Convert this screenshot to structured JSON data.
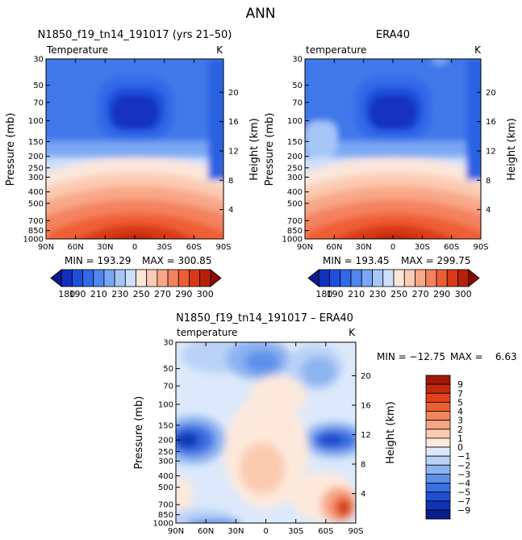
{
  "figure_title": "ANN",
  "chart_data": [
    {
      "type": "heatmap",
      "title": "N1850_f19_tn14_191017 (yrs 21–50)",
      "left_string": "Temperature",
      "units": "K",
      "ylabel": "Pressure (mb)",
      "y2label": "Height (km)",
      "x_ticks": [
        "90N",
        "60N",
        "30N",
        "0",
        "30S",
        "60S",
        "90S"
      ],
      "y_ticks": [
        "30",
        "50",
        "70",
        "100",
        "150",
        "200",
        "250",
        "300",
        "400",
        "500",
        "700",
        "850",
        "1000"
      ],
      "y2_ticks": [
        "20",
        "16",
        "12",
        "8",
        "4"
      ],
      "min_label": "MIN = 193.29",
      "max_label": "MAX = 300.85",
      "colorbar_labels": [
        "180",
        "190",
        "210",
        "230",
        "250",
        "270",
        "290",
        "300"
      ],
      "colorbar_colors": [
        "#0b1a8a",
        "#1230c0",
        "#1e4fdc",
        "#3169e8",
        "#4f86ef",
        "#79a7f3",
        "#a6c6f8",
        "#cfe0fb",
        "#fbe6da",
        "#fccbb2",
        "#f8a888",
        "#f4825e",
        "#ee5e35",
        "#d93a15",
        "#b8200a",
        "#8a0b04"
      ]
    },
    {
      "type": "heatmap",
      "title": "ERA40",
      "left_string": "temperature",
      "units": "K",
      "ylabel": "Pressure (mb)",
      "y2label": "Height (km)",
      "x_ticks": [
        "90N",
        "60N",
        "30N",
        "0",
        "30S",
        "60S",
        "90S"
      ],
      "y_ticks": [
        "30",
        "50",
        "70",
        "100",
        "150",
        "200",
        "250",
        "300",
        "400",
        "500",
        "700",
        "850",
        "1000"
      ],
      "y2_ticks": [
        "20",
        "16",
        "12",
        "8",
        "4"
      ],
      "min_label": "MIN = 193.45",
      "max_label": "MAX = 299.75",
      "colorbar_labels": [
        "180",
        "190",
        "210",
        "230",
        "250",
        "270",
        "290",
        "300"
      ]
    },
    {
      "type": "heatmap",
      "title": "N1850_f19_tn14_191017 – ERA40",
      "left_string": "temperature",
      "units": "K",
      "ylabel": "Pressure (mb)",
      "y2label": "Height (km)",
      "x_ticks": [
        "90N",
        "60N",
        "30N",
        "0",
        "30S",
        "60S",
        "90S"
      ],
      "y_ticks": [
        "30",
        "50",
        "70",
        "100",
        "150",
        "200",
        "250",
        "300",
        "400",
        "500",
        "700",
        "850",
        "1000"
      ],
      "y2_ticks": [
        "20",
        "16",
        "12",
        "8",
        "4"
      ],
      "min_label": "MIN = −12.75",
      "max_label": "MAX =    6.63",
      "colorbar_labels": [
        "9",
        "7",
        "5",
        "4",
        "3",
        "2",
        "1",
        "0",
        "−1",
        "−2",
        "−3",
        "−4",
        "−5",
        "−7",
        "−9"
      ],
      "colorbar_colors": [
        "#a01808",
        "#c42a0a",
        "#de4218",
        "#ec6030",
        "#f3855a",
        "#f7a585",
        "#fbcbb0",
        "#fde9dc",
        "#dce9fb",
        "#b9d2f6",
        "#8cb3f0",
        "#5e90ea",
        "#3a6ee2",
        "#2050d0",
        "#0f34b4",
        "#081e88"
      ]
    }
  ]
}
